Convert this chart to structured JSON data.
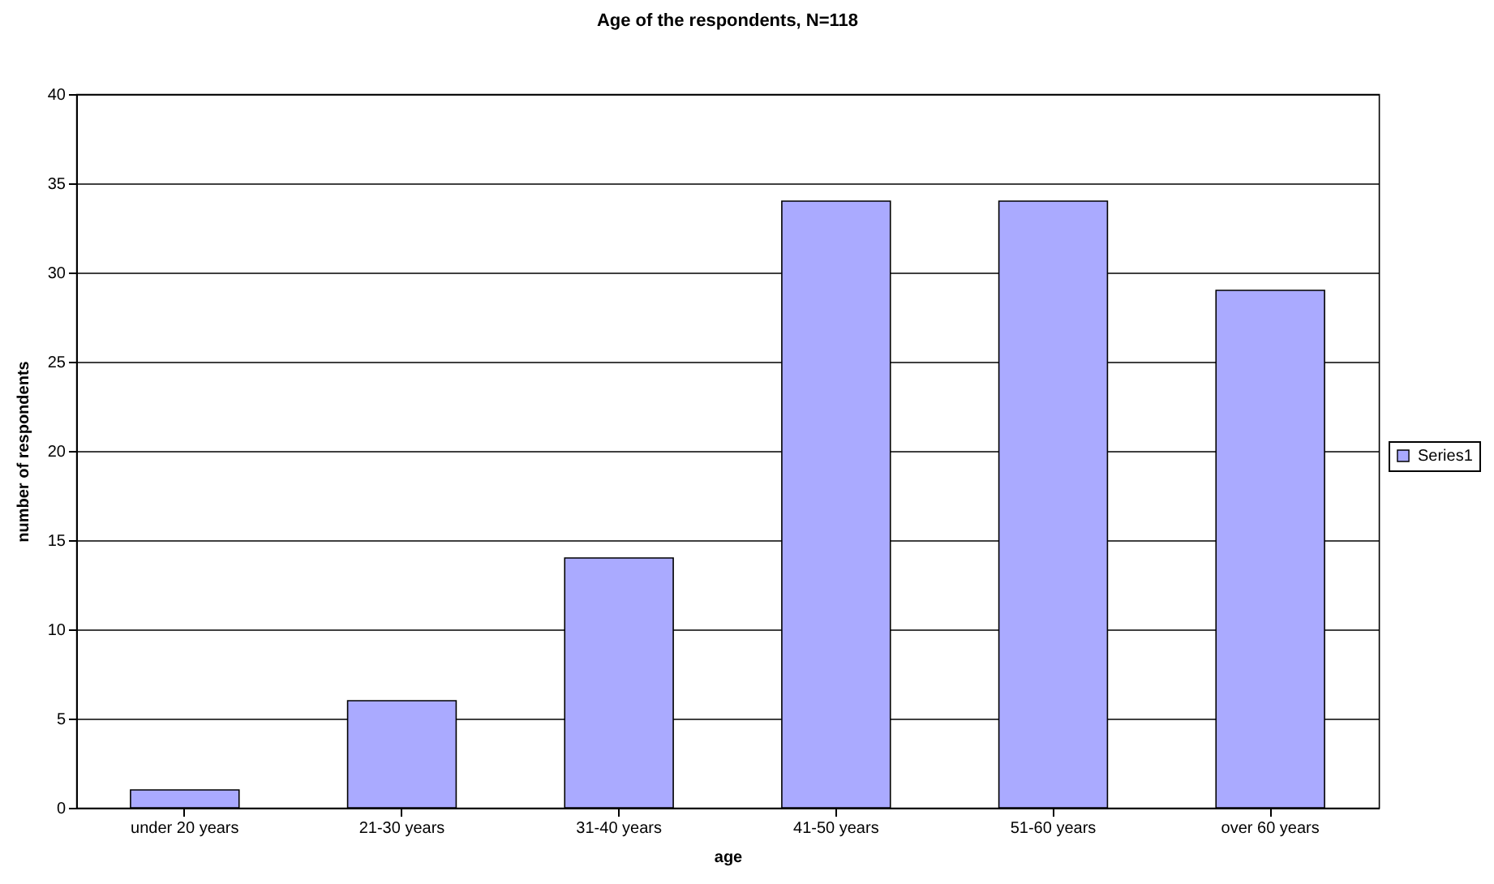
{
  "chart_data": {
    "type": "bar",
    "title": "Age of the respondents, N=118",
    "xlabel": "age",
    "ylabel": "number of respondents",
    "categories": [
      "under 20 years",
      "21-30 years",
      "31-40 years",
      "41-50 years",
      "51-60 years",
      "over 60 years"
    ],
    "series": [
      {
        "name": "Series1",
        "color": "#aaaaff",
        "values": [
          1,
          6,
          14,
          34,
          34,
          29
        ]
      }
    ],
    "ylim": [
      0,
      40
    ],
    "yticks": [
      0,
      5,
      10,
      15,
      20,
      25,
      30,
      35,
      40
    ],
    "grid": "y",
    "legend": "right"
  }
}
